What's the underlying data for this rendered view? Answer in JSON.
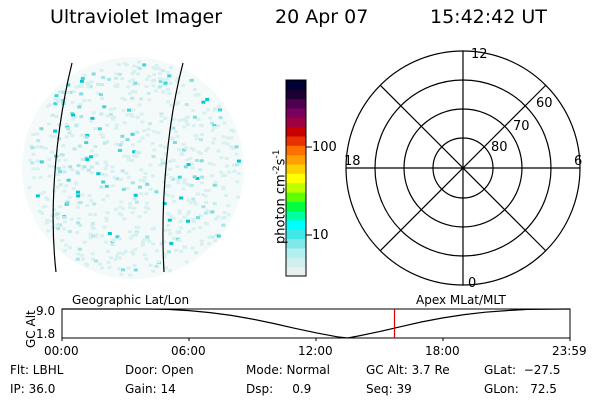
{
  "header": {
    "instrument": "Ultraviolet Imager",
    "date": "20 Apr 07",
    "time": "15:42:42 UT"
  },
  "colorbar": {
    "unit_label": "photon cm",
    "unit_exp1": "-2",
    "unit_mid": "s",
    "unit_exp2": "-1",
    "tick_100": "100",
    "tick_10": "10",
    "colors": [
      "#000033",
      "#1a0033",
      "#4d004d",
      "#7a0060",
      "#a00040",
      "#c80000",
      "#e83000",
      "#ff7000",
      "#ffa000",
      "#ffd000",
      "#ffff00",
      "#c0ff00",
      "#60ff00",
      "#00ff40",
      "#00ffa0",
      "#00ffff",
      "#40e8e8",
      "#80e8e8",
      "#b0f0f0",
      "#d0f0f0",
      "#e8f0f0"
    ]
  },
  "polar": {
    "mlt_12": "12",
    "mlt_18": "18",
    "mlt_6": "6",
    "mlt_0": "0",
    "lat_60": "60",
    "lat_70": "70",
    "lat_80": "80"
  },
  "timeline": {
    "left_label": "Geographic Lat/Lon",
    "right_label": "Apex MLat/MLT",
    "y_axis_label": "GC Alt",
    "y_top": "9.0",
    "y_bottom": "1.8",
    "x_ticks": [
      "00:00",
      "06:00",
      "12:00",
      "18:00",
      "23:59"
    ],
    "marker_time_hours": 15.71,
    "marker_color": "#e00000"
  },
  "chart_data": {
    "type": "line",
    "title": "",
    "xlabel": "",
    "ylabel": "GC Alt",
    "xlim": [
      0,
      24
    ],
    "ylim": [
      1.8,
      9.0
    ],
    "series": [
      {
        "x": [
          0,
          4,
          5,
          6,
          7,
          8,
          9,
          10,
          11,
          12,
          13,
          13.5,
          14,
          15,
          16,
          17,
          18,
          19,
          20,
          21,
          22,
          23.98
        ],
        "values": [
          9.0,
          9.0,
          8.9,
          8.6,
          8.1,
          7.4,
          6.5,
          5.4,
          4.2,
          3.1,
          2.1,
          1.8,
          2.3,
          3.4,
          4.6,
          5.8,
          6.8,
          7.6,
          8.2,
          8.6,
          8.9,
          9.0
        ]
      }
    ]
  },
  "footer": {
    "flt": "Flt: LBHL",
    "ip": "IP: 36.0",
    "door": "Door: Open",
    "gain": "Gain: 14",
    "mode": "Mode: Normal",
    "dsp": "Dsp:     0.9",
    "gcalt": "GC Alt: 3.7 Re",
    "seq": "Seq: 39",
    "glat": "GLat:  −27.5",
    "glon": "GLon:   72.5"
  }
}
